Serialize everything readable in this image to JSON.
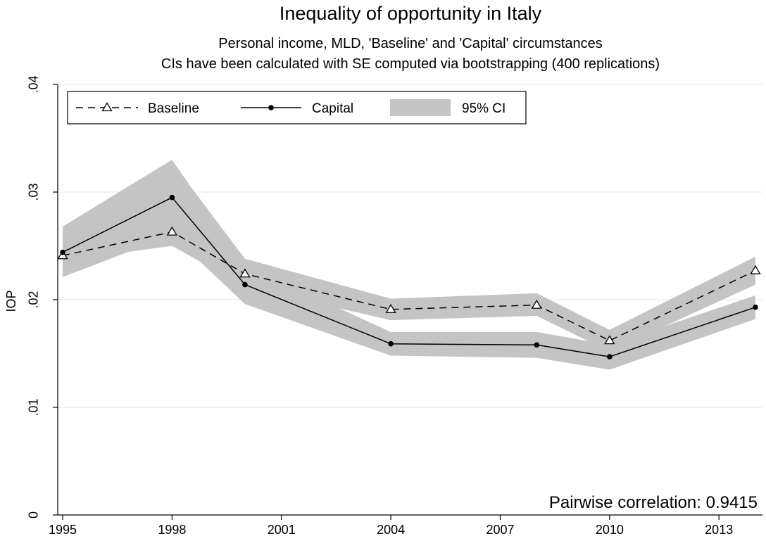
{
  "chart_data": {
    "type": "line",
    "title": "Inequality of opportunity in Italy",
    "subtitles": [
      "Personal income, MLD, 'Baseline' and 'Capital' circumstances",
      "CIs have been calculated with SE computed via bootstrapping (400 replications)"
    ],
    "xlabel": "",
    "ylabel": "IOP",
    "xlim": [
      1995,
      2014
    ],
    "ylim": [
      0,
      0.04
    ],
    "x_ticks": [
      1995,
      1998,
      2001,
      2004,
      2007,
      2010,
      2013
    ],
    "y_ticks": [
      0,
      0.01,
      0.02,
      0.03,
      0.04
    ],
    "y_tick_labels": [
      "0",
      ".01",
      ".02",
      ".03",
      ".04"
    ],
    "grid": "horizontal",
    "legend_position": "top-left",
    "annotation": "Pairwise correlation: 0.9415",
    "ci_label": "95% CI",
    "ci_color": "#c4c4c4",
    "series": [
      {
        "name": "Baseline",
        "style": "dashed",
        "marker": "triangle-open",
        "color": "#000000",
        "x": [
          1995,
          1998,
          2000,
          2004,
          2008,
          2010,
          2014
        ],
        "values": [
          0.0241,
          0.0263,
          0.0224,
          0.0191,
          0.0195,
          0.0162,
          0.0227
        ],
        "ci_lower": [
          0.0236,
          0.025,
          0.0212,
          0.0181,
          0.0185,
          0.0152,
          0.0214
        ],
        "ci_upper": [
          0.0267,
          0.0328,
          0.0238,
          0.0201,
          0.0206,
          0.0172,
          0.024
        ]
      },
      {
        "name": "Capital",
        "style": "solid",
        "marker": "circle-filled",
        "color": "#000000",
        "x": [
          1995,
          1998,
          2000,
          2004,
          2008,
          2010,
          2014
        ],
        "values": [
          0.0244,
          0.0295,
          0.0214,
          0.0159,
          0.0158,
          0.0147,
          0.0193
        ],
        "ci_lower": [
          0.0221,
          0.026,
          0.0196,
          0.0148,
          0.0146,
          0.0135,
          0.0182
        ],
        "ci_upper": [
          0.0268,
          0.033,
          0.0232,
          0.017,
          0.017,
          0.0158,
          0.0204
        ]
      }
    ]
  }
}
